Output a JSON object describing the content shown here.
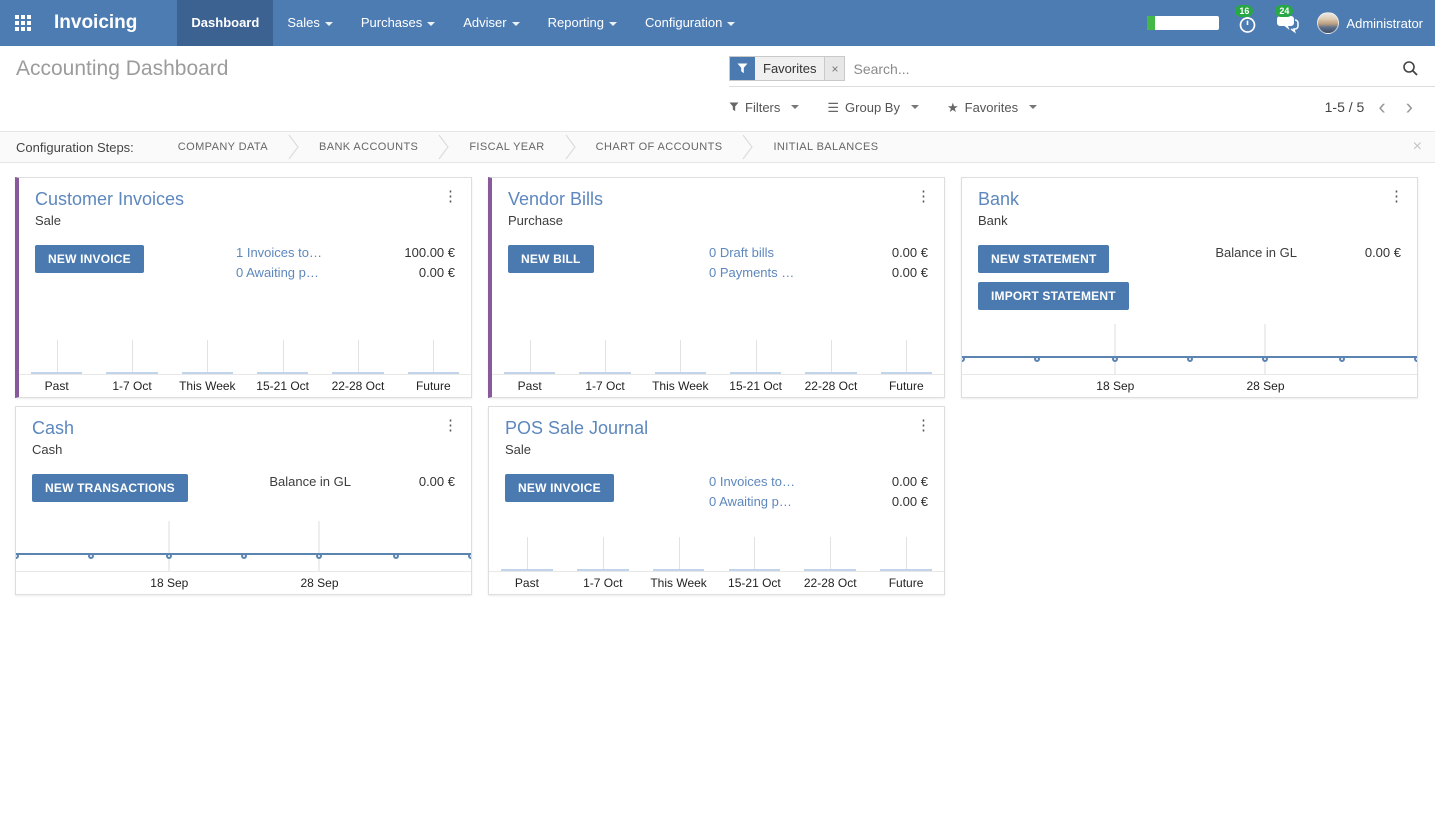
{
  "colors": {
    "navbar": "#4d7cb3",
    "navbar_active": "#3c6292",
    "primary_button": "#4a7ab0",
    "accent_purple": "#885a9b",
    "badge_green": "#28a745",
    "progress_green": "#44b749",
    "link_blue": "#5d87bd",
    "chart_line": "#5b84b1",
    "chart_zero_bar": "#c2d4ea"
  },
  "icons": {
    "kebab": "⋮",
    "close": "×",
    "remove": "×",
    "star": "★",
    "group_by": "☰",
    "chevron_left": "‹",
    "chevron_right": "›"
  },
  "nav": {
    "brand": "Invoicing",
    "items": [
      {
        "label": "Dashboard",
        "active": true,
        "dropdown": false
      },
      {
        "label": "Sales",
        "active": false,
        "dropdown": true
      },
      {
        "label": "Purchases",
        "active": false,
        "dropdown": true
      },
      {
        "label": "Adviser",
        "active": false,
        "dropdown": true
      },
      {
        "label": "Reporting",
        "active": false,
        "dropdown": true
      },
      {
        "label": "Configuration",
        "active": false,
        "dropdown": true
      }
    ],
    "timer_badge": "16",
    "messages_badge": "24",
    "user": "Administrator"
  },
  "control_panel": {
    "title": "Accounting Dashboard",
    "search": {
      "facet": "Favorites",
      "placeholder": "Search..."
    },
    "filters_label": "Filters",
    "group_by_label": "Group By",
    "favorites_label": "Favorites",
    "pager": "1-5 / 5"
  },
  "config_steps": {
    "label": "Configuration Steps:",
    "steps": [
      "COMPANY DATA",
      "BANK ACCOUNTS",
      "FISCAL YEAR",
      "CHART OF ACCOUNTS",
      "INITIAL BALANCES"
    ]
  },
  "cards": [
    {
      "row": 1,
      "accent": true,
      "title": "Customer Invoices",
      "subtitle": "Sale",
      "buttons": [
        "NEW INVOICE"
      ],
      "rows": [
        {
          "link": "1 Invoices to…",
          "amount": "100.00 €"
        },
        {
          "link": "0 Awaiting p…",
          "amount": "0.00 €"
        }
      ],
      "chart": {
        "type": "bar",
        "categories": [
          "Past",
          "1-7 Oct",
          "This Week",
          "15-21 Oct",
          "22-28 Oct",
          "Future"
        ],
        "values": [
          0,
          0,
          0,
          0,
          0,
          0
        ]
      }
    },
    {
      "row": 1,
      "accent": true,
      "title": "Vendor Bills",
      "subtitle": "Purchase",
      "buttons": [
        "NEW BILL"
      ],
      "rows": [
        {
          "link": "0 Draft bills",
          "amount": "0.00 €"
        },
        {
          "link": "0 Payments …",
          "amount": "0.00 €"
        }
      ],
      "chart": {
        "type": "bar",
        "categories": [
          "Past",
          "1-7 Oct",
          "This Week",
          "15-21 Oct",
          "22-28 Oct",
          "Future"
        ],
        "values": [
          0,
          0,
          0,
          0,
          0,
          0
        ]
      }
    },
    {
      "row": 1,
      "accent": false,
      "title": "Bank",
      "subtitle": "Bank",
      "buttons": [
        "NEW STATEMENT",
        "IMPORT STATEMENT"
      ],
      "balance": {
        "label": "Balance in GL",
        "amount": "0.00 €"
      },
      "chart": {
        "type": "line",
        "ticks": [
          {
            "label": "18 Sep",
            "pos": 0.337
          },
          {
            "label": "28 Sep",
            "pos": 0.667
          }
        ],
        "marker_pos": [
          0,
          0.165,
          0.337,
          0.5,
          0.667,
          0.835,
          1
        ],
        "values": [
          0,
          0,
          0,
          0,
          0,
          0,
          0
        ]
      }
    },
    {
      "row": 2,
      "accent": false,
      "title": "Cash",
      "subtitle": "Cash",
      "buttons": [
        "NEW TRANSACTIONS"
      ],
      "balance": {
        "label": "Balance in GL",
        "amount": "0.00 €"
      },
      "chart": {
        "type": "line",
        "ticks": [
          {
            "label": "18 Sep",
            "pos": 0.337
          },
          {
            "label": "28 Sep",
            "pos": 0.667
          }
        ],
        "marker_pos": [
          0,
          0.165,
          0.337,
          0.5,
          0.667,
          0.835,
          1
        ],
        "values": [
          0,
          0,
          0,
          0,
          0,
          0,
          0
        ]
      }
    },
    {
      "row": 2,
      "accent": false,
      "title": "POS Sale Journal",
      "subtitle": "Sale",
      "buttons": [
        "NEW INVOICE"
      ],
      "rows": [
        {
          "link": "0 Invoices to…",
          "amount": "0.00 €"
        },
        {
          "link": "0 Awaiting p…",
          "amount": "0.00 €"
        }
      ],
      "chart": {
        "type": "bar",
        "categories": [
          "Past",
          "1-7 Oct",
          "This Week",
          "15-21 Oct",
          "22-28 Oct",
          "Future"
        ],
        "values": [
          0,
          0,
          0,
          0,
          0,
          0
        ]
      }
    }
  ]
}
